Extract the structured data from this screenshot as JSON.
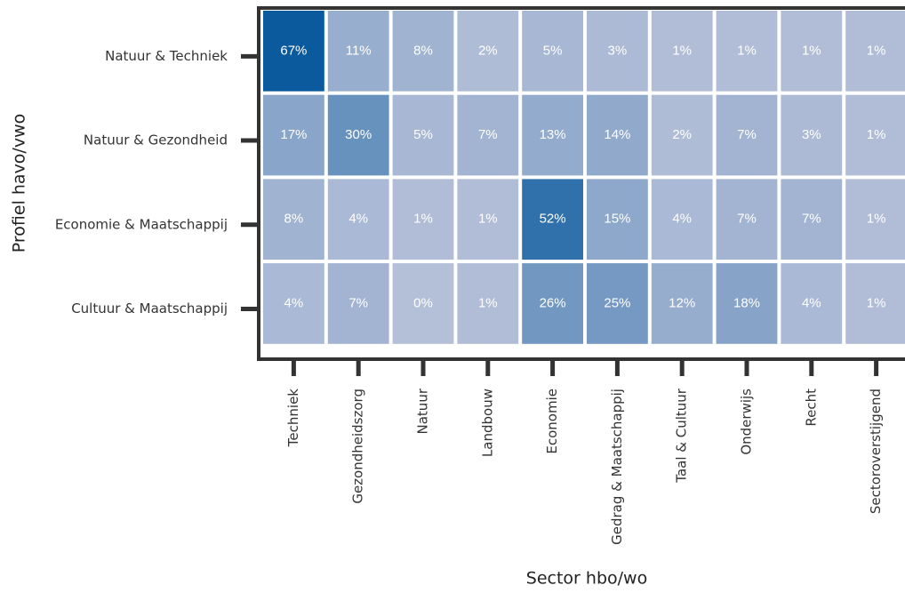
{
  "chart_data": {
    "type": "heatmap",
    "xlabel": "Sector hbo/wo",
    "ylabel": "Profiel havo/vwo",
    "x_categories": [
      "Techniek",
      "Gezondheidszorg",
      "Natuur",
      "Landbouw",
      "Economie",
      "Gedrag & Maatschappij",
      "Taal & Cultuur",
      "Onderwijs",
      "Recht",
      "Sectoroverstijgend"
    ],
    "y_categories": [
      "Natuur & Techniek",
      "Natuur & Gezondheid",
      "Economie & Maatschappij",
      "Cultuur & Maatschappij"
    ],
    "values": [
      [
        67,
        11,
        8,
        2,
        5,
        3,
        1,
        1,
        1,
        1
      ],
      [
        17,
        30,
        5,
        7,
        13,
        14,
        2,
        7,
        3,
        1
      ],
      [
        8,
        4,
        1,
        1,
        52,
        15,
        4,
        7,
        7,
        1
      ],
      [
        4,
        7,
        0,
        1,
        26,
        25,
        12,
        18,
        4,
        1
      ]
    ],
    "value_labels": [
      [
        "67%",
        "11%",
        "8%",
        "2%",
        "5%",
        "3%",
        "1%",
        "1%",
        "1%",
        "1%"
      ],
      [
        "17%",
        "30%",
        "5%",
        "7%",
        "13%",
        "14%",
        "2%",
        "7%",
        "3%",
        "1%"
      ],
      [
        "8%",
        "4%",
        "1%",
        "1%",
        "52%",
        "15%",
        "4%",
        "7%",
        "7%",
        "1%"
      ],
      [
        "4%",
        "7%",
        "0%",
        "1%",
        "26%",
        "25%",
        "12%",
        "18%",
        "4%",
        "1%"
      ]
    ],
    "colormap": [
      "#b4bfd8",
      "#0b5a9e"
    ]
  }
}
